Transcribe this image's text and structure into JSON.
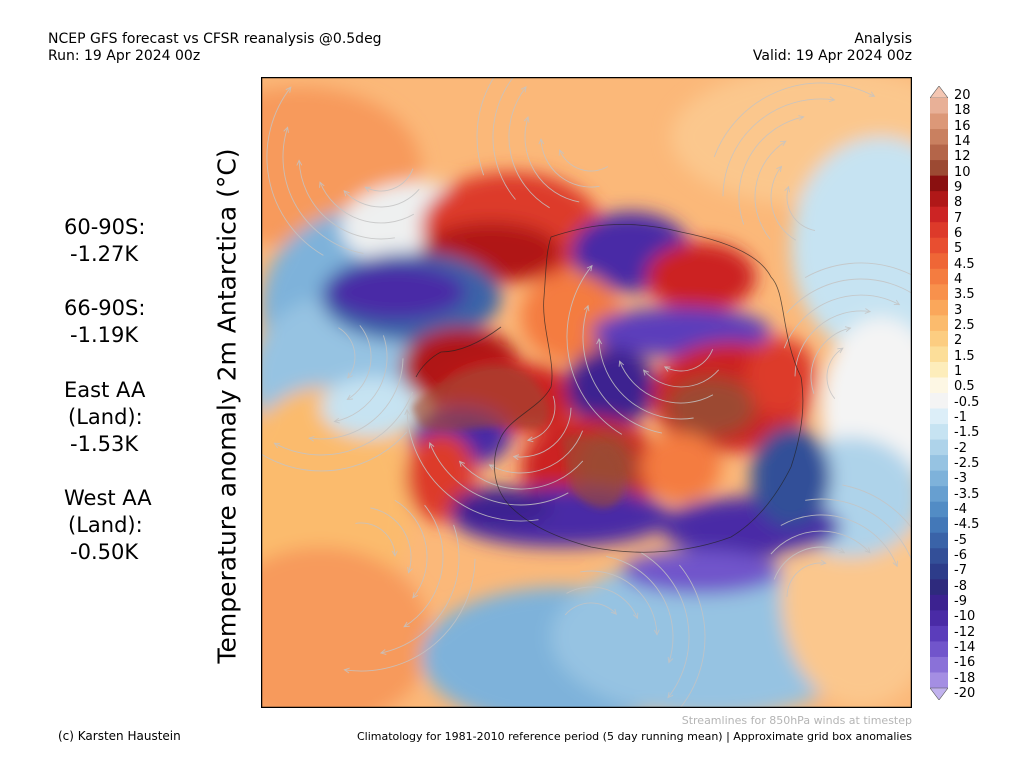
{
  "header": {
    "title": "NCEP GFS forecast vs CFSR reanalysis @0.5deg",
    "run": "Run: 19 Apr 2024 00z",
    "mode": "Analysis",
    "valid": "Valid: 19 Apr 2024 00z"
  },
  "map": {
    "ylabel": "Temperature anomaly 2m Antarctica (°C)",
    "region": "Antarctica",
    "projection": "south-polar",
    "streamline_color": "#b8b8b8"
  },
  "stats": [
    {
      "label": "60-90S:",
      "value": "-1.27K"
    },
    {
      "label": "66-90S:",
      "value": "-1.19K"
    },
    {
      "label": "East AA",
      "label2": "(Land):",
      "value": "-1.53K"
    },
    {
      "label": "West AA",
      "label2": "(Land):",
      "value": "-0.50K"
    }
  ],
  "colorbar": {
    "ticks": [
      "20",
      "18",
      "16",
      "14",
      "12",
      "10",
      "9",
      "8",
      "7",
      "6",
      "5",
      "4.5",
      "4",
      "3.5",
      "3",
      "2.5",
      "2",
      "1.5",
      "1",
      "0.5",
      "-0.5",
      "-1",
      "-1.5",
      "-2",
      "-2.5",
      "-3",
      "-3.5",
      "-4",
      "-4.5",
      "-5",
      "-6",
      "-7",
      "-8",
      "-9",
      "-10",
      "-12",
      "-14",
      "-16",
      "-18",
      "-20"
    ],
    "colors": [
      "#f4c6b2",
      "#e8b097",
      "#dc9878",
      "#c98060",
      "#b46549",
      "#9c4a33",
      "#8a1010",
      "#b01818",
      "#cc2424",
      "#dd3a2a",
      "#e84e30",
      "#ef6636",
      "#f47c40",
      "#f8914c",
      "#faa75b",
      "#fbbb6d",
      "#fccd81",
      "#fcde99",
      "#fdedbb",
      "#fdf7e4",
      "#f4f4f4",
      "#dceef8",
      "#c6e3f2",
      "#aed3ea",
      "#96c3e2",
      "#7eb2da",
      "#679fd0",
      "#528cc5",
      "#4378b8",
      "#3a63a8",
      "#334f98",
      "#2d3c8a",
      "#2e2a7d",
      "#3c2290",
      "#4a2ba6",
      "#5b3dbb",
      "#7155cb",
      "#8a71d8",
      "#a48ee3",
      "#c1b2ee"
    ]
  },
  "footer": {
    "streamlines_note": "Streamlines for 850hPa winds at timestep",
    "copyright": "(c) Karsten Haustein",
    "climatology_note": "Climatology for 1981-2010 reference period (5 day running mean) | Approximate grid box anomalies"
  }
}
